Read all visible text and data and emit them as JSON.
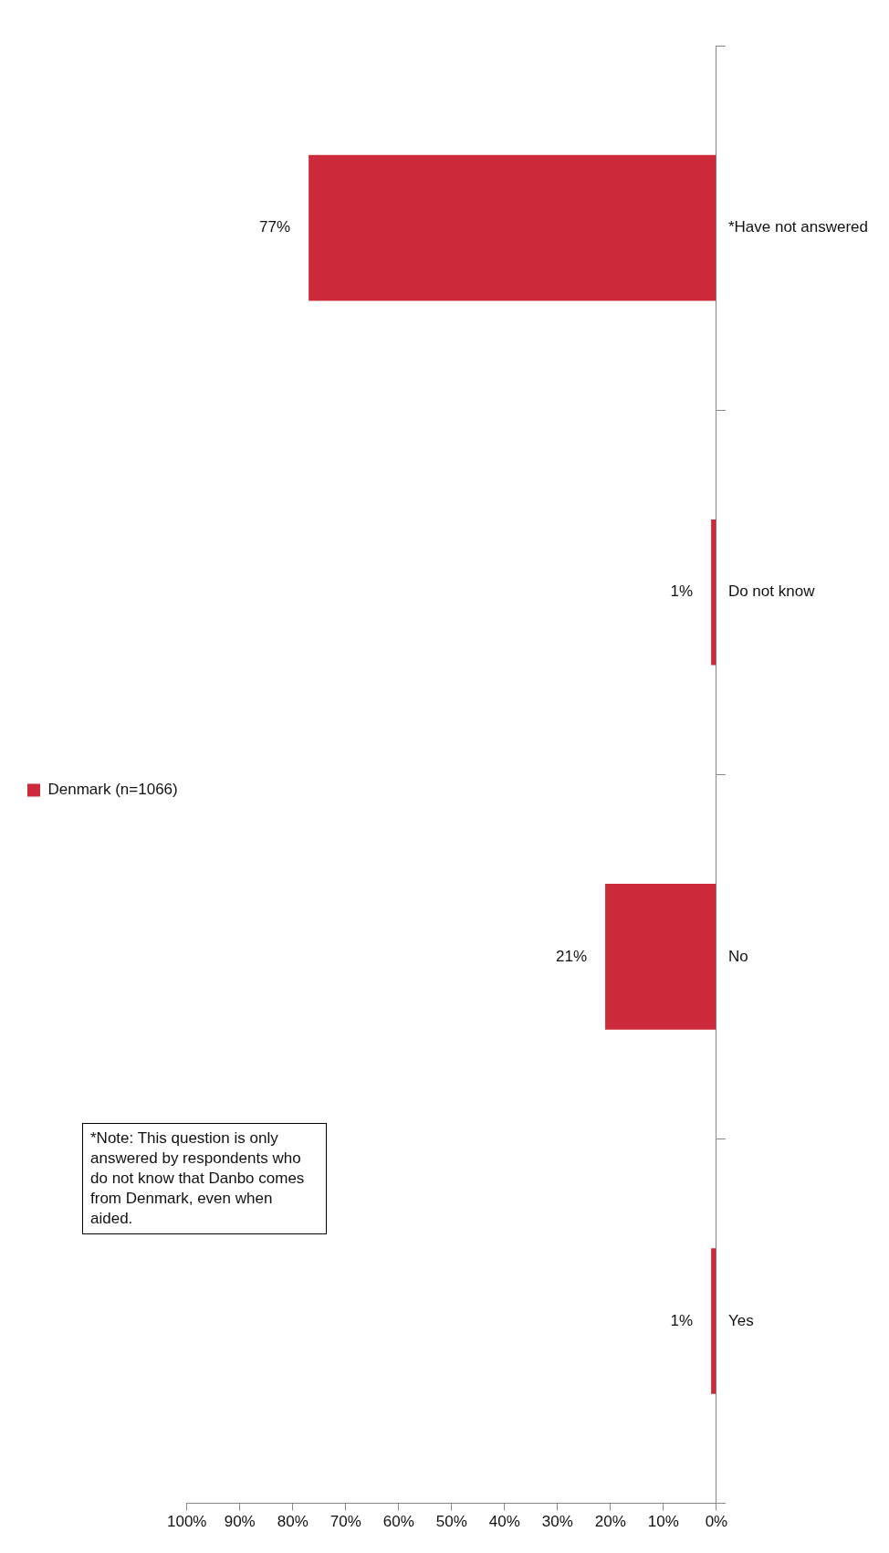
{
  "chart_data": {
    "type": "bar",
    "orientation": "horizontal",
    "categories": [
      "*Have not answered",
      "Do not know",
      "No",
      "Yes"
    ],
    "series": [
      {
        "name": "Denmark (n=1066)",
        "color": "#cc2a3a",
        "values": [
          77,
          1,
          21,
          1
        ],
        "value_labels": [
          "77%",
          "1%",
          "21%",
          "1%"
        ]
      }
    ],
    "xlim": [
      100,
      0
    ],
    "xticks": [
      {
        "value": 0,
        "label": "0%"
      },
      {
        "value": 10,
        "label": "10%"
      },
      {
        "value": 20,
        "label": "20%"
      },
      {
        "value": 30,
        "label": "30%"
      },
      {
        "value": 40,
        "label": "40%"
      },
      {
        "value": 50,
        "label": "50%"
      },
      {
        "value": 60,
        "label": "60%"
      },
      {
        "value": 70,
        "label": "70%"
      },
      {
        "value": 80,
        "label": "80%"
      },
      {
        "value": 90,
        "label": "90%"
      },
      {
        "value": 100,
        "label": "100%"
      }
    ],
    "grid": false,
    "legend": "left",
    "annotations": [
      "*Note: This question is only answered by respondents who do not know that Danbo comes from Denmark, even when aided."
    ]
  }
}
